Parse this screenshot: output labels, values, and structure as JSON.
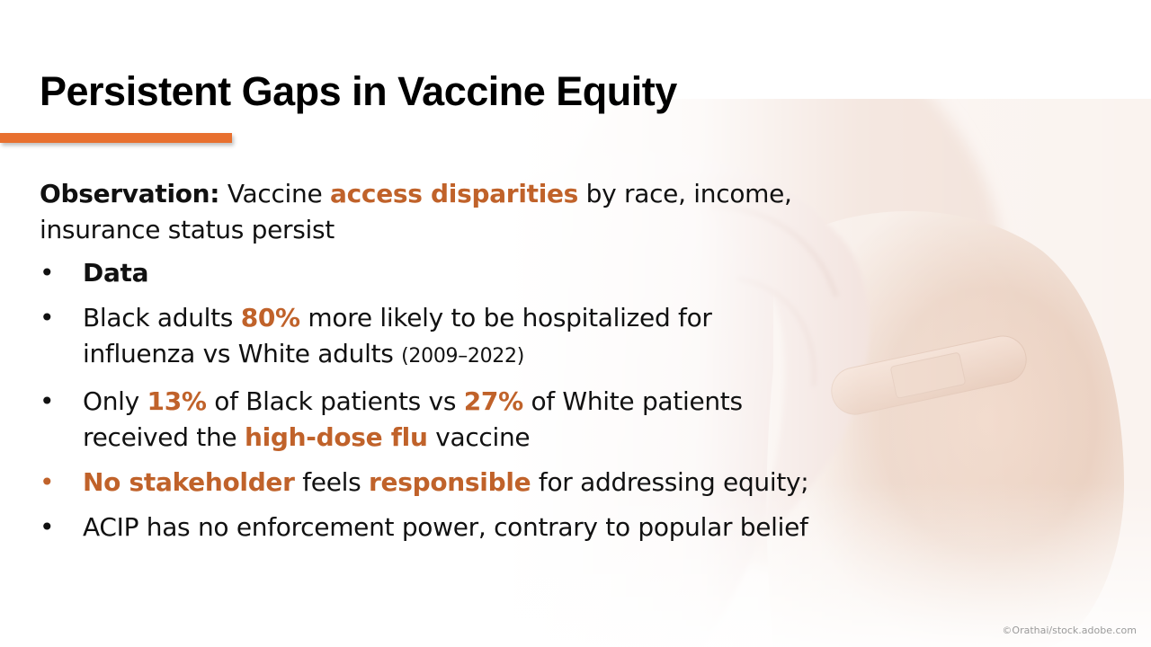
{
  "slide": {
    "title": "Persistent Gaps in Vaccine Equity",
    "accent_color": "#e8702f",
    "highlight_color": "#c0622a",
    "observation": {
      "label": "Observation:",
      "text_1": " Vaccine ",
      "highlight": "access disparities",
      "text_2": " by race, income, insurance status persist"
    },
    "bullets": [
      {
        "bullet": "•",
        "bold": "Data"
      },
      {
        "bullet": "•",
        "t1": "Black adults ",
        "h1": "80%",
        "t2": " more likely to be hospitalized for influenza vs White adults ",
        "small": "(2009–2022)"
      },
      {
        "bullet": "•",
        "t1": "Only ",
        "h1": "13%",
        "t2": " of Black patients vs ",
        "h2": "27%",
        "t3": " of White patients received the ",
        "h3": "high-dose flu",
        "t4": " vaccine"
      },
      {
        "bullet": "•",
        "h1": "No stakeholder",
        "t1": " feels ",
        "h2": "responsible",
        "t2": " for addressing equity;"
      },
      {
        "bullet": "•",
        "t1": "ACIP has no enforcement power, contrary to popular belief"
      }
    ],
    "image_credit": "©Orathai/stock.adobe.com",
    "background_image": "shoulder-with-bandage-photo"
  }
}
